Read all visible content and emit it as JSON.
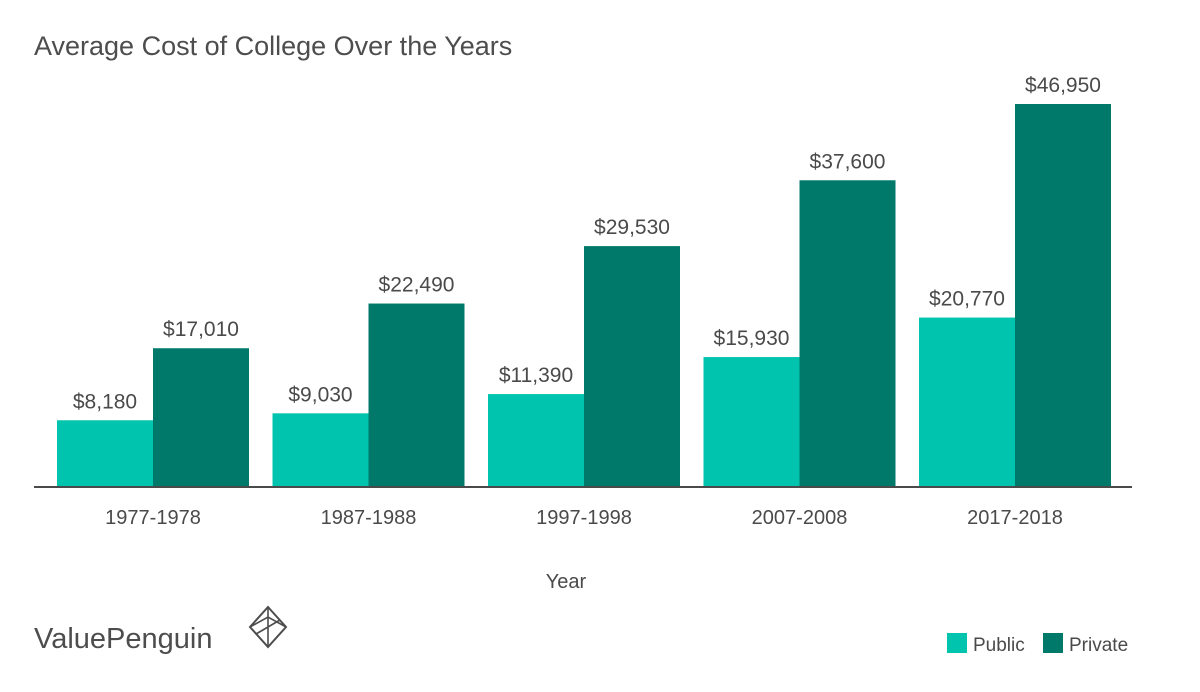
{
  "chart_data": {
    "type": "bar",
    "title": "Average Cost of College Over the Years",
    "xlabel": "Year",
    "ylabel": "",
    "categories": [
      "1977-1978",
      "1987-1988",
      "1997-1998",
      "2007-2008",
      "2017-2018"
    ],
    "series": [
      {
        "name": "Public",
        "color": "#00c4ae",
        "values": [
          8180,
          9030,
          11390,
          15930,
          20770
        ],
        "labels": [
          "$8,180",
          "$9,030",
          "$11,390",
          "$15,930",
          "$20,770"
        ]
      },
      {
        "name": "Private",
        "color": "#00796b",
        "values": [
          17010,
          22490,
          29530,
          37600,
          46950
        ],
        "labels": [
          "$17,010",
          "$22,490",
          "$29,530",
          "$37,600",
          "$46,950"
        ]
      }
    ],
    "ylim": [
      0,
      46950
    ],
    "grid": false,
    "legend_position": "bottom-right"
  },
  "brand": {
    "name": "ValuePenguin",
    "logo_icon": "valuepenguin-logo-icon"
  },
  "colors": {
    "text": "#4a4a4a",
    "axis": "#4a4a4a"
  }
}
